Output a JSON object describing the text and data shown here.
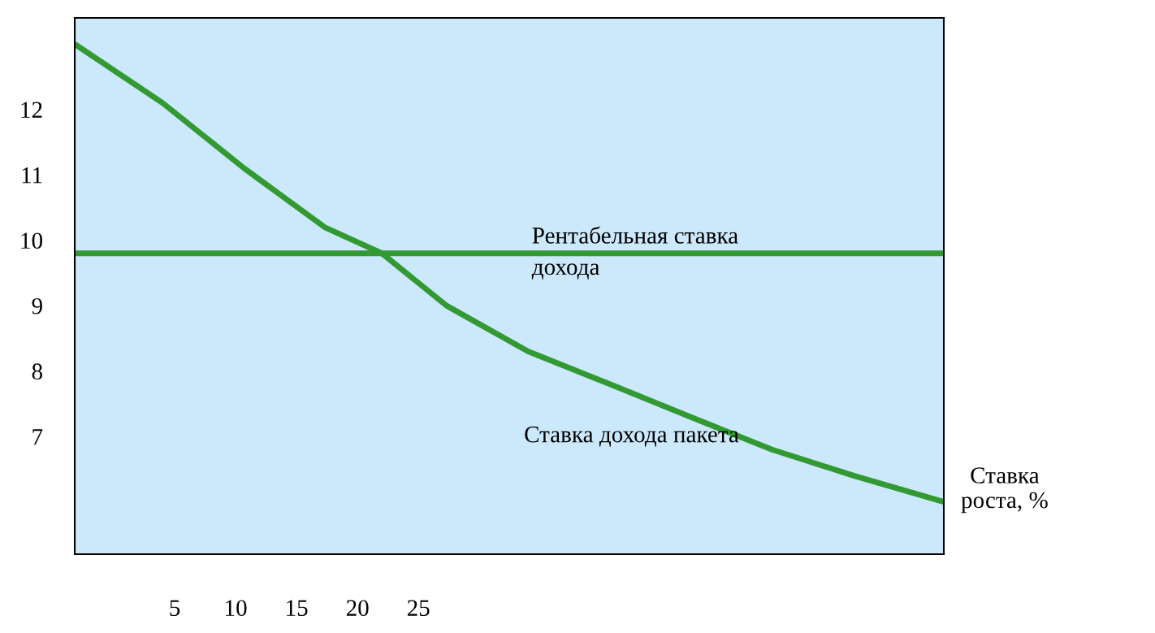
{
  "chart_data": {
    "type": "line",
    "xlabel": "Ставка\nроста, %",
    "xlim": [
      -3.2,
      68.1
    ],
    "ylim": [
      5.2,
      13.4
    ],
    "xticks": [
      5,
      10,
      15,
      20,
      25
    ],
    "yticks": [
      7,
      8,
      9,
      10,
      11,
      12
    ],
    "grid": false,
    "legend": false,
    "marker": "none",
    "line_style": "solid",
    "series": [
      {
        "color": "#339933",
        "x": [
          -3.2,
          68.1
        ],
        "values": [
          9.8,
          9.8
        ]
      },
      {
        "color": "#339933",
        "x": [
          -3.2,
          4.0,
          10.7,
          17.3,
          22.0,
          27.3,
          34.0,
          40.7,
          47.3,
          54.0,
          60.7,
          68.1
        ],
        "values": [
          13.0,
          12.1,
          11.1,
          10.2,
          9.8,
          9.0,
          8.3,
          7.8,
          7.3,
          6.8,
          6.4,
          6.0
        ]
      }
    ],
    "annotations": [
      {
        "text": "Рентабельная ставка\nдохода",
        "x": 34.3,
        "y": 9.8
      },
      {
        "text": "Ставка дохода пакета",
        "x": 51.3,
        "y": 7.0
      }
    ]
  }
}
